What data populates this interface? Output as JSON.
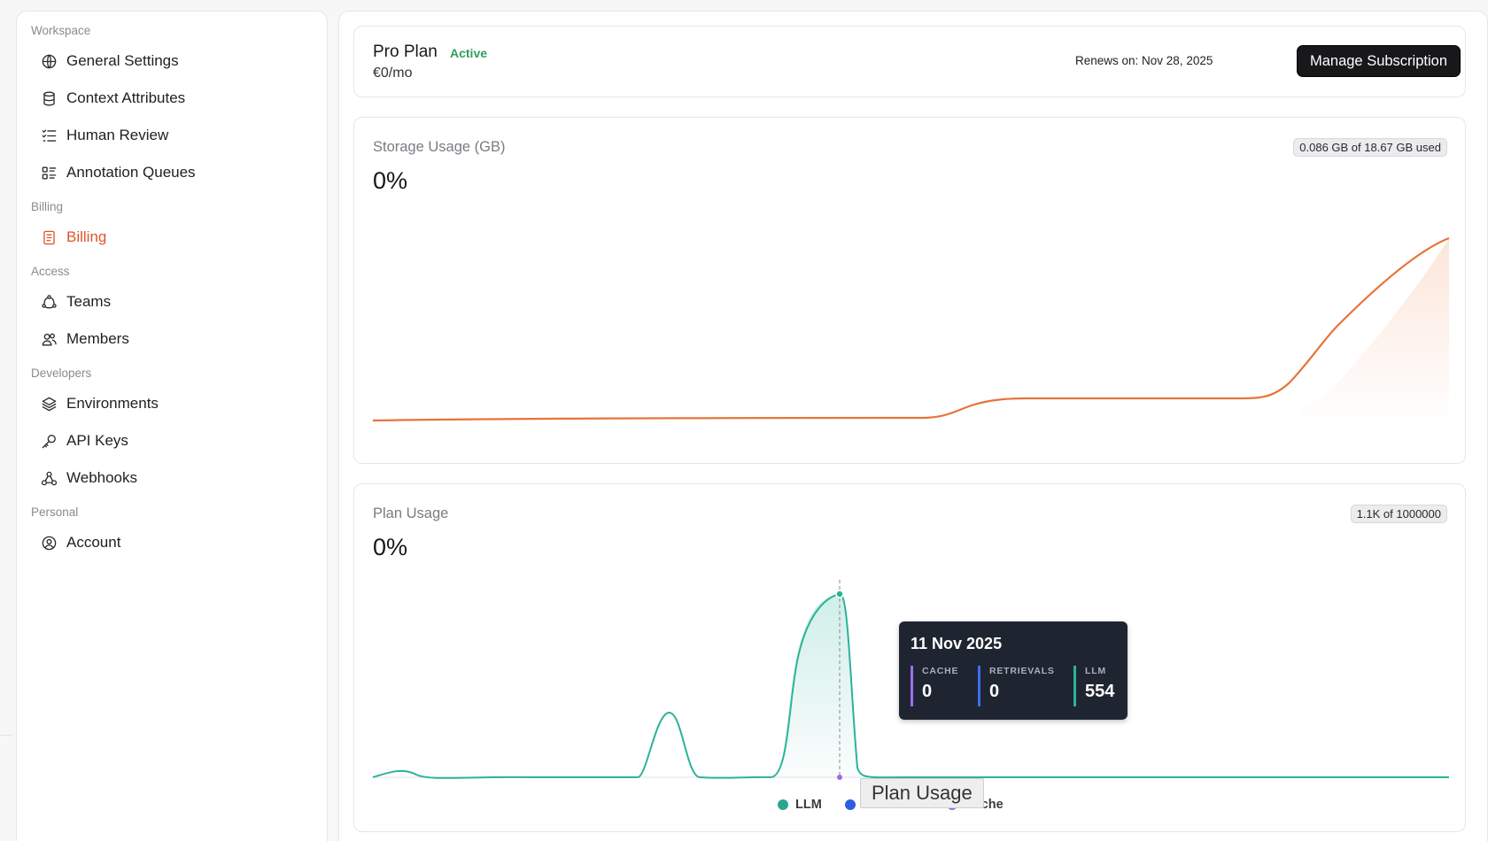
{
  "sidebar": {
    "sections": [
      {
        "title": "Workspace",
        "items": [
          {
            "label": "General Settings",
            "icon": "globe-icon"
          },
          {
            "label": "Context Attributes",
            "icon": "database-icon"
          },
          {
            "label": "Human Review",
            "icon": "checklist-icon"
          },
          {
            "label": "Annotation Queues",
            "icon": "queue-list-icon"
          }
        ]
      },
      {
        "title": "Billing",
        "items": [
          {
            "label": "Billing",
            "icon": "receipt-icon",
            "active": true
          }
        ]
      },
      {
        "title": "Access",
        "items": [
          {
            "label": "Teams",
            "icon": "teams-icon"
          },
          {
            "label": "Members",
            "icon": "users-icon"
          }
        ]
      },
      {
        "title": "Developers",
        "items": [
          {
            "label": "Environments",
            "icon": "layers-icon"
          },
          {
            "label": "API Keys",
            "icon": "key-icon"
          },
          {
            "label": "Webhooks",
            "icon": "webhook-icon"
          }
        ]
      },
      {
        "title": "Personal",
        "items": [
          {
            "label": "Account",
            "icon": "account-circle-icon"
          }
        ]
      }
    ]
  },
  "plan": {
    "name": "Pro Plan",
    "status": "Active",
    "price": "€0/mo",
    "renews": "Renews on: Nov 28, 2025",
    "manage_label": "Manage Subscription"
  },
  "storage": {
    "title": "Storage Usage (GB)",
    "percent": "0%",
    "pill": "0.086 GB of 18.67 GB used"
  },
  "planUsage": {
    "title": "Plan Usage",
    "percent": "0%",
    "pill": "1.1K of 1000000",
    "legend_overlay": "Plan Usage",
    "tooltip": {
      "date": "11 Nov 2025",
      "cols": [
        {
          "label": "CACHE",
          "value": "0",
          "color": "#a06cf0"
        },
        {
          "label": "RETRIEVALS",
          "value": "0",
          "color": "#3b6ff0"
        },
        {
          "label": "LLM",
          "value": "554",
          "color": "#2bb39a"
        }
      ]
    },
    "legend": [
      {
        "label": "LLM",
        "color": "#2aa68e"
      },
      {
        "label": "Retrievals",
        "color": "#2d5fe0"
      },
      {
        "label": "Cache",
        "color": "#9b6ae8"
      }
    ]
  },
  "colors": {
    "accent": "#e0552a",
    "teal": "#2bb39a",
    "orange": "#e8733a"
  }
}
